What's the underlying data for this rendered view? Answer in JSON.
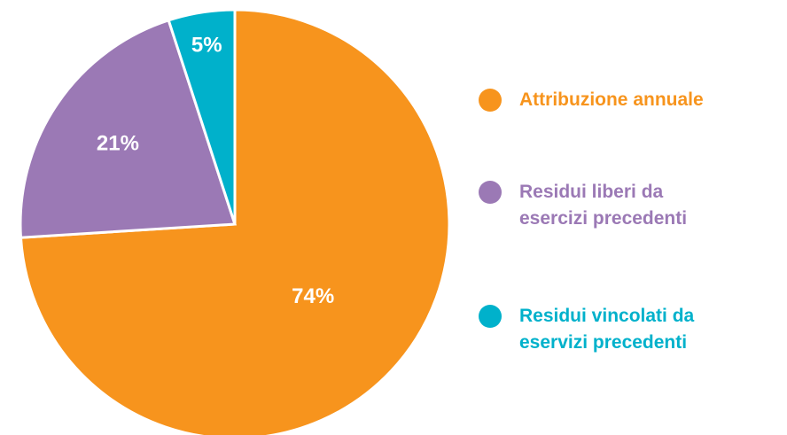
{
  "chart_data": {
    "type": "pie",
    "categories": [
      "Attribuzione annuale",
      "Residui liberi da esercizi precedenti",
      "Residui vincolati da eservizi precedenti"
    ],
    "values": [
      74,
      21,
      5
    ],
    "value_labels": [
      "74%",
      "21%",
      "5%"
    ],
    "colors": [
      "#f7941d",
      "#9b79b5",
      "#00b1cb"
    ],
    "legend": "right"
  }
}
